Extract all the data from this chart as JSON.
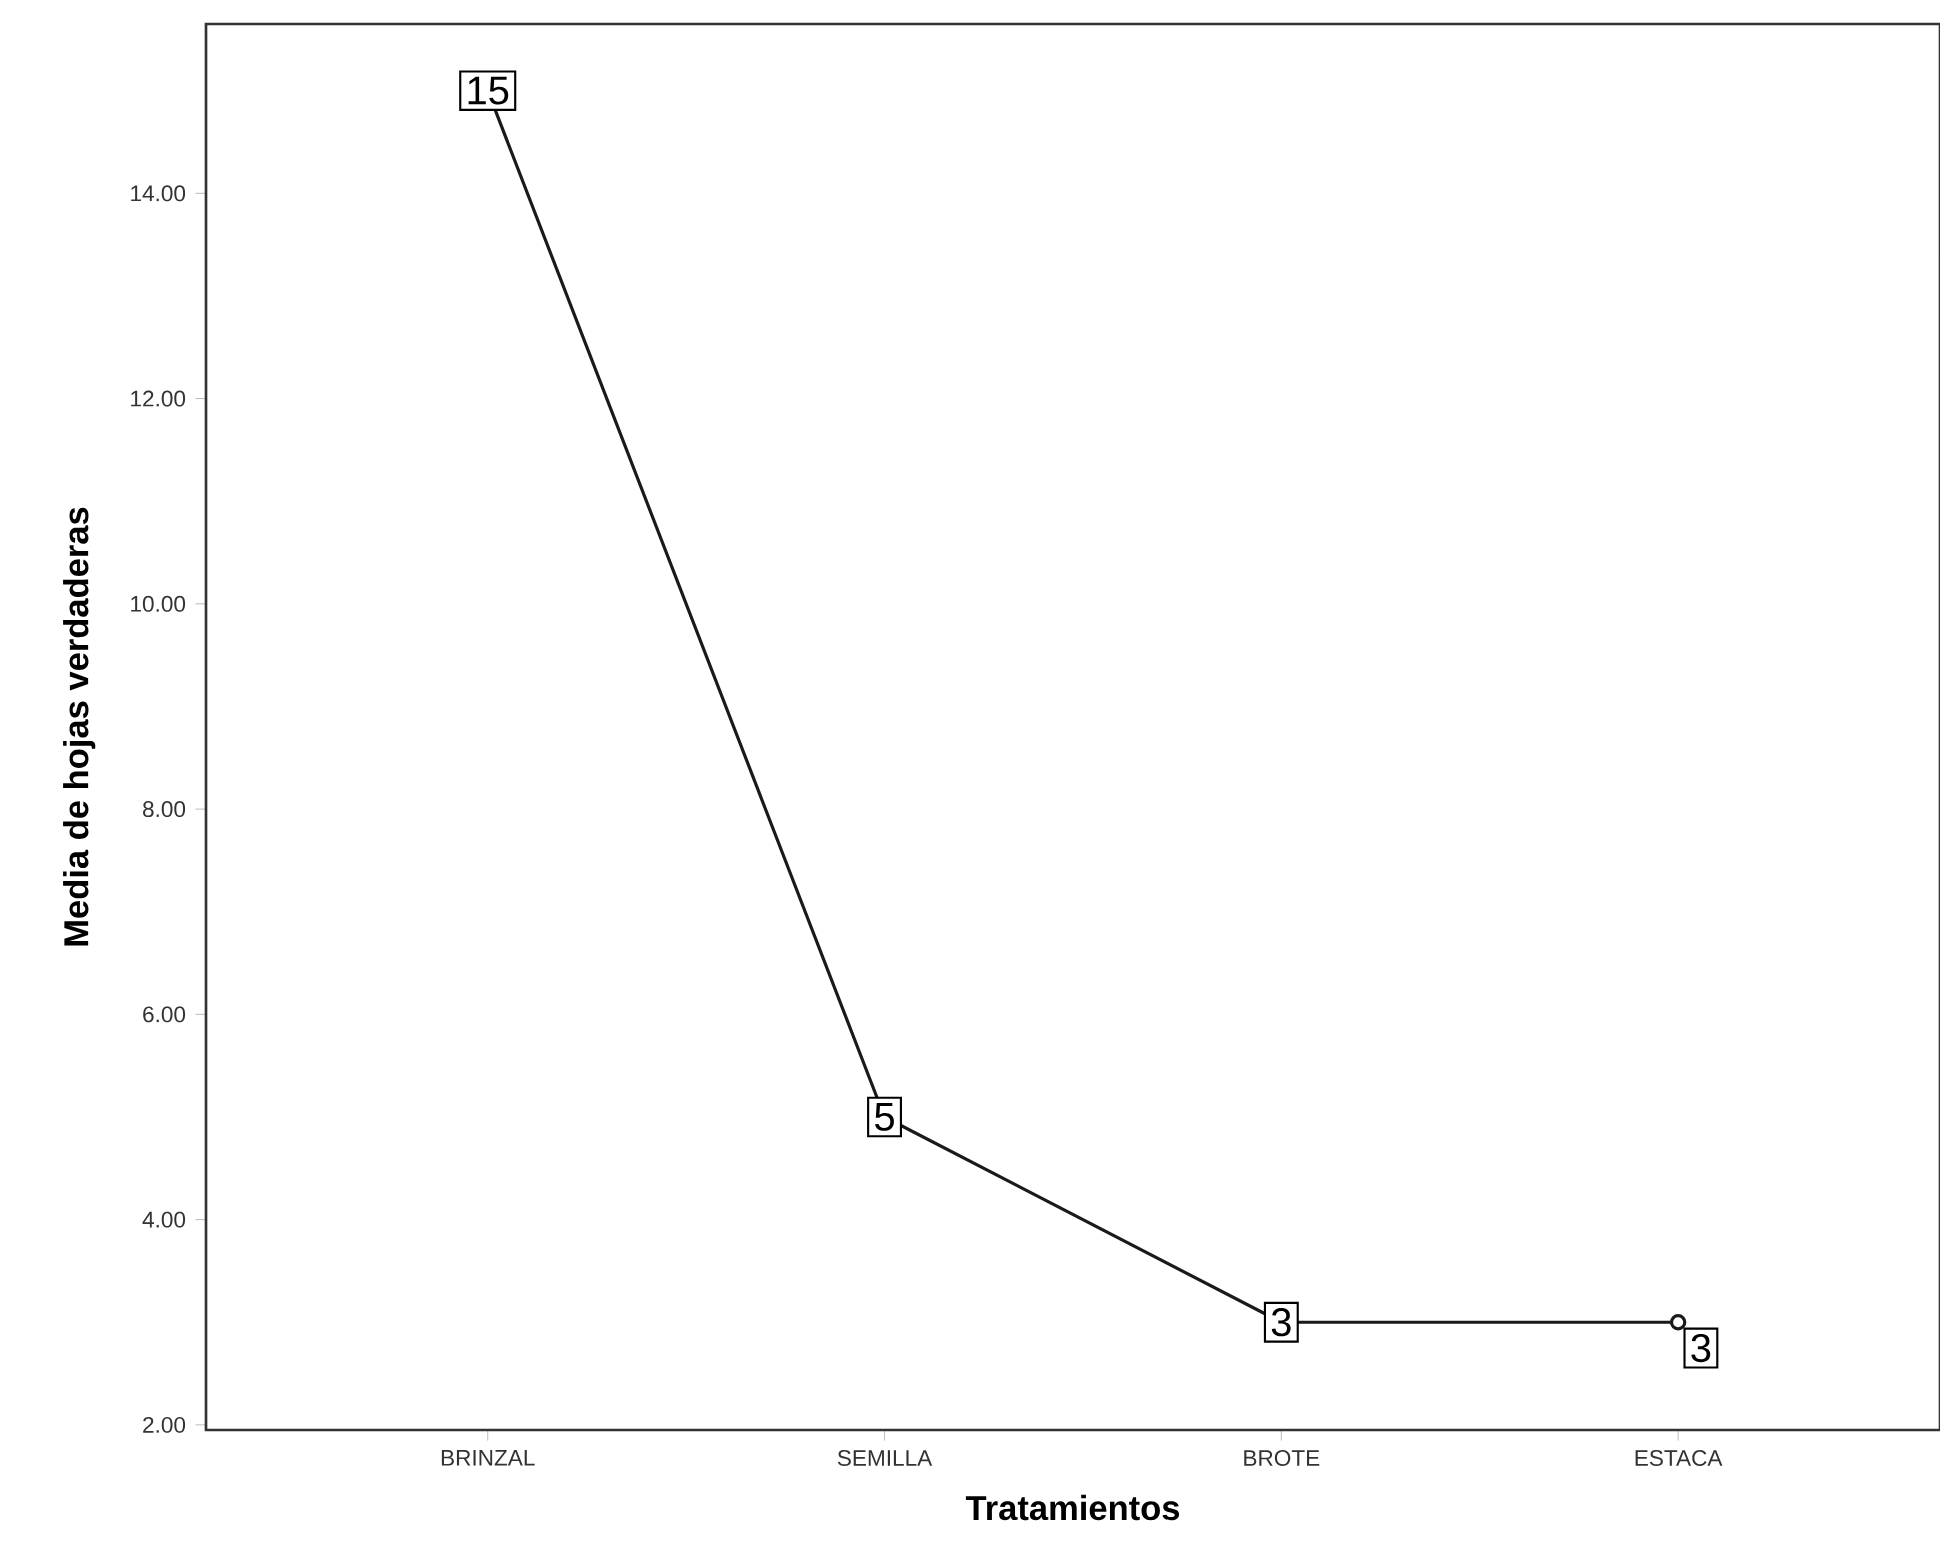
{
  "chart_data": {
    "type": "line",
    "xlabel": "Tratamientos",
    "ylabel": "Media de hojas verdaderas",
    "categories": [
      "BRINZAL",
      "SEMILLA",
      "BROTE",
      "ESTACA"
    ],
    "series": [
      {
        "color": "#1a1a1a",
        "values": [
          15,
          5,
          3,
          3
        ]
      }
    ],
    "ylim": [
      1.95,
      15.65
    ],
    "yticks": [
      {
        "value": 2,
        "label": "2.00"
      },
      {
        "value": 4,
        "label": "4.00"
      },
      {
        "value": 6,
        "label": "6.00"
      },
      {
        "value": 8,
        "label": "8.00"
      },
      {
        "value": 10,
        "label": "10.00"
      },
      {
        "value": 12,
        "label": "12.00"
      },
      {
        "value": 14,
        "label": "14.00"
      }
    ],
    "data_labels": true,
    "marker": "circle",
    "line_style": "solid",
    "grid": false
  }
}
